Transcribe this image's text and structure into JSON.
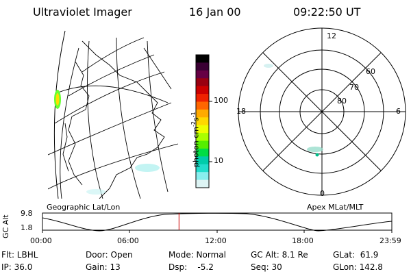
{
  "header": {
    "instrument": "Ultraviolet Imager",
    "date": "16 Jan 00",
    "time": "09:22:50 UT"
  },
  "left_panel": {
    "caption": "Geographic Lat/Lon"
  },
  "right_panel": {
    "caption": "Apex MLat/MLT",
    "mlt_labels": {
      "top": "12",
      "bottom": "0",
      "left": "18",
      "right": "6"
    },
    "lat_labels": [
      "60",
      "70",
      "80"
    ]
  },
  "colorbar": {
    "unit_label": "photon cm^-2 s^-1",
    "ticks": [
      "100",
      "10"
    ],
    "colors": [
      "#000000",
      "#3a0033",
      "#660044",
      "#990011",
      "#cc0000",
      "#ee2200",
      "#ff6600",
      "#ffaa00",
      "#ffd800",
      "#eeff00",
      "#aaff00",
      "#55ee00",
      "#00dd44",
      "#00ccaa",
      "#22ddcc",
      "#88eeee",
      "#ddf4f4"
    ]
  },
  "altitude_plot": {
    "ylabel": "GC Alt",
    "yticks": [
      "9.8",
      "1.8"
    ],
    "xticks": [
      "00:00",
      "06:00",
      "12:00",
      "18:00",
      "23:59"
    ],
    "current_time_hours": 9.38
  },
  "info": {
    "filter": "Flt: LBHL",
    "ip": "IP: 36.0",
    "door": "Door: Open",
    "gain": "Gain: 13",
    "mode": "Mode: Normal",
    "dsp": "Dsp:    -5.2",
    "gc_alt": "GC Alt: 8.1 Re",
    "seq": "Seq: 30",
    "glat": "GLat:  61.9",
    "glon": "GLon: 142.8"
  }
}
